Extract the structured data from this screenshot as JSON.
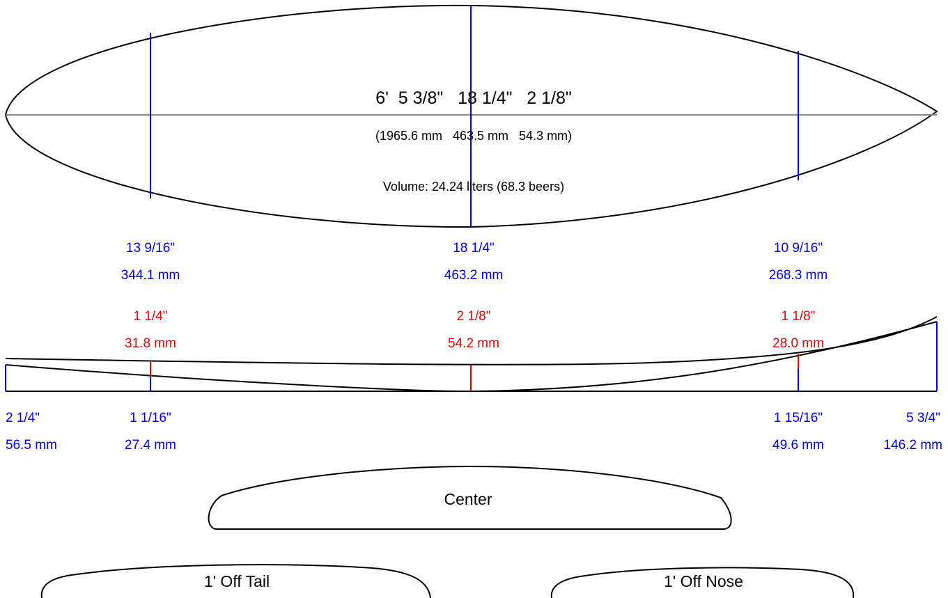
{
  "board": {
    "dimensions_imperial": "6'  5 3/8\"   18 1/4\"   2 1/8\"",
    "dimensions_metric": "(1965.6 mm   463.5 mm   54.3 mm)",
    "volume": "Volume: 24.24 liters (68.3 beers)"
  },
  "widths": [
    {
      "imperial": "13 9/16\"",
      "metric": "344.1 mm"
    },
    {
      "imperial": "18 1/4\"",
      "metric": "463.2 mm"
    },
    {
      "imperial": "10 9/16\"",
      "metric": "268.3 mm"
    }
  ],
  "thicknesses": [
    {
      "imperial": "1 1/4\"",
      "metric": "31.8 mm"
    },
    {
      "imperial": "2 1/8\"",
      "metric": "54.2 mm"
    },
    {
      "imperial": "1 1/8\"",
      "metric": "28.0 mm"
    }
  ],
  "rocker": [
    {
      "imperial": "2 1/4\"",
      "metric": "56.5 mm"
    },
    {
      "imperial": "1 1/16\"",
      "metric": "27.4 mm"
    },
    {
      "imperial": "1 15/16\"",
      "metric": "49.6 mm"
    },
    {
      "imperial": "5 3/4\"",
      "metric": "146.2 mm"
    }
  ],
  "sections": {
    "center": "Center",
    "tail": "1' Off Tail",
    "nose": "1' Off Nose"
  },
  "colors": {
    "width_lines": "#0000dd",
    "thickness_lines": "#ee0000",
    "stringer": "#888888"
  }
}
